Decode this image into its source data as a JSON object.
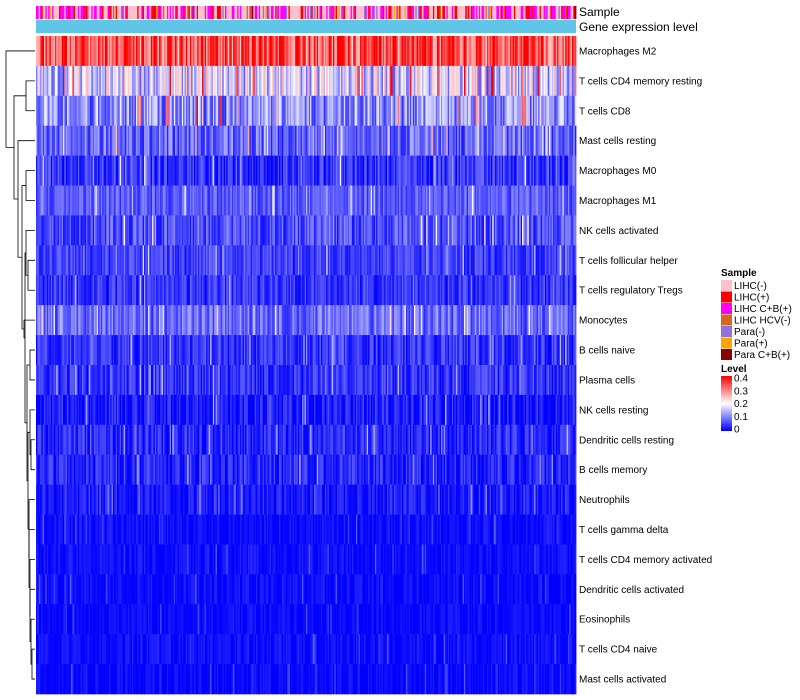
{
  "chart_data": {
    "type": "heatmap",
    "title": "",
    "annotation_tracks": [
      {
        "name": "Sample",
        "label": "Sample"
      },
      {
        "name": "Gene expression level",
        "label": "Gene expression level",
        "color": "#5fc6e8"
      }
    ],
    "rows": [
      {
        "name": "Macrophages M2",
        "mean": 0.34,
        "spread": 0.1
      },
      {
        "name": "T cells CD4 memory resting",
        "mean": 0.17,
        "spread": 0.1
      },
      {
        "name": "T cells CD8",
        "mean": 0.11,
        "spread": 0.08
      },
      {
        "name": "Mast cells resting",
        "mean": 0.08,
        "spread": 0.06
      },
      {
        "name": "Macrophages M0",
        "mean": 0.04,
        "spread": 0.05
      },
      {
        "name": "Macrophages M1",
        "mean": 0.07,
        "spread": 0.04
      },
      {
        "name": "NK cells activated",
        "mean": 0.06,
        "spread": 0.05
      },
      {
        "name": "T cells follicular helper",
        "mean": 0.05,
        "spread": 0.04
      },
      {
        "name": "T cells regulatory  Tregs",
        "mean": 0.04,
        "spread": 0.04
      },
      {
        "name": "Monocytes",
        "mean": 0.08,
        "spread": 0.05
      },
      {
        "name": "B cells naive",
        "mean": 0.04,
        "spread": 0.04
      },
      {
        "name": "Plasma cells",
        "mean": 0.04,
        "spread": 0.04
      },
      {
        "name": "NK cells resting",
        "mean": 0.02,
        "spread": 0.04
      },
      {
        "name": "Dendritic cells resting",
        "mean": 0.03,
        "spread": 0.04
      },
      {
        "name": "B cells memory",
        "mean": 0.03,
        "spread": 0.04
      },
      {
        "name": "Neutrophils",
        "mean": 0.02,
        "spread": 0.03
      },
      {
        "name": "T cells gamma delta",
        "mean": 0.01,
        "spread": 0.02
      },
      {
        "name": "T cells CD4 memory activated",
        "mean": 0.01,
        "spread": 0.02
      },
      {
        "name": "Dendritic cells activated",
        "mean": 0.01,
        "spread": 0.02
      },
      {
        "name": "Eosinophils",
        "mean": 0.005,
        "spread": 0.02
      },
      {
        "name": "T cells CD4 naive",
        "mean": 0.01,
        "spread": 0.02
      },
      {
        "name": "Mast cells activated",
        "mean": 0.005,
        "spread": 0.02
      }
    ],
    "n_samples": 400,
    "color_scale": {
      "title": "Level",
      "min": 0,
      "max": 0.4,
      "stops": [
        {
          "value": 0,
          "color": "#0000ff"
        },
        {
          "value": 0.2,
          "color": "#ffffff"
        },
        {
          "value": 0.4,
          "color": "#ff0000"
        }
      ],
      "ticks": [
        "0.4",
        "0.3",
        "0.2",
        "0.1",
        "0"
      ]
    },
    "legend": {
      "title": "Sample",
      "placement": "right",
      "items": [
        {
          "label": "LIHC(-)",
          "color": "#ffc0cb"
        },
        {
          "label": "LIHC(+)",
          "color": "#ff0000"
        },
        {
          "label": "LIHC C+B(+)",
          "color": "#ff00ff"
        },
        {
          "label": "LIHC HCV(-)",
          "color": "#d2691e"
        },
        {
          "label": "Para(-)",
          "color": "#9370db"
        },
        {
          "label": "Para(+)",
          "color": "#ffa500"
        },
        {
          "label": "Para C+B(+)",
          "color": "#8b0000"
        }
      ]
    },
    "sample_composition": [
      0.42,
      0.18,
      0.28,
      0.03,
      0.06,
      0.02,
      0.01
    ]
  }
}
